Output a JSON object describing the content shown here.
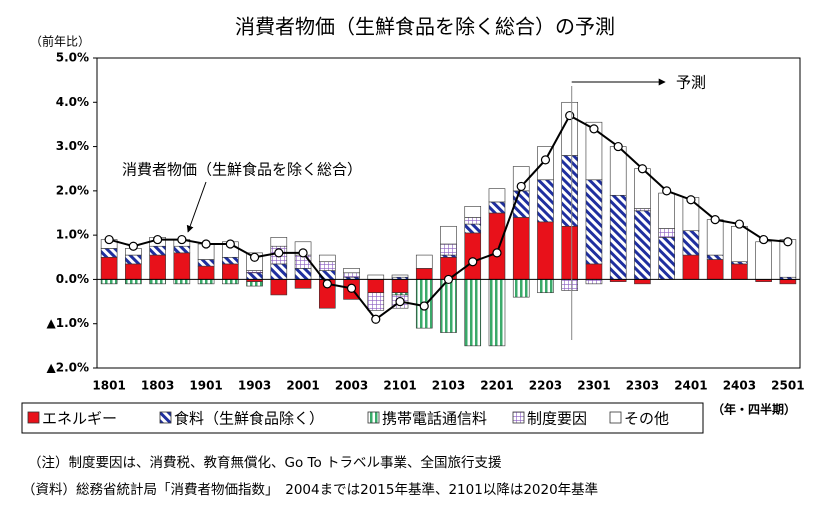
{
  "chart_data": {
    "type": "bar",
    "stacked": true,
    "title": "消費者物価（生鮮食品を除く総合）の予測",
    "y_axis_label": "（前年比）",
    "x_axis_label": "（年・四半期）",
    "categories": [
      "1801",
      null,
      "1803",
      null,
      "1901",
      null,
      "1903",
      null,
      "2001",
      null,
      "2003",
      null,
      "2101",
      null,
      "2103",
      null,
      "2201",
      null,
      "2203",
      null,
      "2301",
      null,
      "2303",
      null,
      "2401",
      null,
      "2403",
      null,
      "2501"
    ],
    "series": [
      {
        "name": "エネルギー",
        "color": "#e8111a",
        "pattern": "solid",
        "values": [
          0.5,
          0.35,
          0.55,
          0.6,
          0.3,
          0.35,
          -0.05,
          -0.35,
          -0.2,
          -0.65,
          -0.45,
          -0.3,
          -0.3,
          0.25,
          0.5,
          1.05,
          1.5,
          1.4,
          1.3,
          1.2,
          0.35,
          -0.05,
          -0.1,
          0,
          0.55,
          0.45,
          0.35,
          -0.05,
          -0.1
        ]
      },
      {
        "name": "食料（生鮮食品除く）",
        "color": "#1f2f9f",
        "pattern": "diagonal",
        "values": [
          0.2,
          0.2,
          0.2,
          0.15,
          0.15,
          0.15,
          0.15,
          0.35,
          0.25,
          0.2,
          0.05,
          0,
          0.05,
          0,
          0.05,
          0.2,
          0.25,
          0.6,
          0.95,
          1.6,
          1.9,
          1.9,
          1.55,
          0.95,
          0.55,
          0.1,
          0.05,
          0,
          0.05
        ]
      },
      {
        "name": "携帯電話通信料",
        "color": "#3aaa6a",
        "pattern": "vertical",
        "values": [
          -0.1,
          -0.1,
          -0.1,
          -0.1,
          -0.1,
          -0.1,
          -0.1,
          0,
          0,
          0,
          0,
          0,
          -0.05,
          -1.1,
          -1.2,
          -1.5,
          -1.5,
          -0.4,
          -0.3,
          0,
          0,
          0,
          0,
          0,
          0,
          0,
          0,
          0,
          0
        ]
      },
      {
        "name": "制度要因",
        "color": "#8a5cc0",
        "pattern": "grid",
        "values": [
          0,
          0,
          0,
          0,
          0,
          0,
          0.05,
          0.4,
          0.3,
          0.2,
          0.1,
          -0.4,
          -0.3,
          0,
          0.25,
          0.15,
          0,
          0,
          0,
          -0.25,
          -0.1,
          0,
          0.05,
          0.2,
          0,
          0,
          0,
          0,
          0
        ]
      },
      {
        "name": "その他",
        "color": "#ffffff",
        "pattern": "solid",
        "values": [
          0.2,
          0.15,
          0.2,
          0.15,
          0.35,
          0.35,
          0.4,
          0.2,
          0.3,
          0.15,
          0.1,
          0.1,
          0.05,
          0.3,
          0.4,
          0.25,
          0.3,
          0.55,
          0.75,
          1.2,
          1.3,
          1.1,
          0.9,
          0.8,
          0.75,
          0.8,
          0.8,
          0.85,
          0.85
        ]
      },
      {
        "name": "消費者物価（生鮮食品を除く総合）",
        "type": "line",
        "color": "#000000",
        "values": [
          0.9,
          0.75,
          0.9,
          0.9,
          0.8,
          0.8,
          0.5,
          0.6,
          0.6,
          -0.1,
          -0.2,
          -0.9,
          -0.5,
          -0.6,
          0.0,
          0.4,
          0.6,
          2.1,
          2.7,
          3.7,
          3.4,
          3.0,
          2.5,
          2.0,
          1.8,
          1.35,
          1.25,
          0.9,
          0.85
        ]
      }
    ],
    "forecast_label": "予測",
    "ylim": [
      -2.0,
      5.0
    ],
    "yticks": [
      {
        "value": 5.0,
        "label": "5.0%"
      },
      {
        "value": 4.0,
        "label": "4.0%"
      },
      {
        "value": 3.0,
        "label": "3.0%"
      },
      {
        "value": 2.0,
        "label": "2.0%"
      },
      {
        "value": 1.0,
        "label": "1.0%"
      },
      {
        "value": 0.0,
        "label": "0.0%"
      },
      {
        "value": -1.0,
        "label": "▲1.0%"
      },
      {
        "value": -2.0,
        "label": "▲2.0%"
      }
    ],
    "grid": false,
    "legend": "bottom",
    "notes": [
      "（注）制度要因は、消費税、教育無償化、Go To トラベル事業、全国旅行支援",
      "（資料）総務省統計局「消費者物価指数」　2004までは2015年基準、2101以降は2020年基準"
    ]
  }
}
